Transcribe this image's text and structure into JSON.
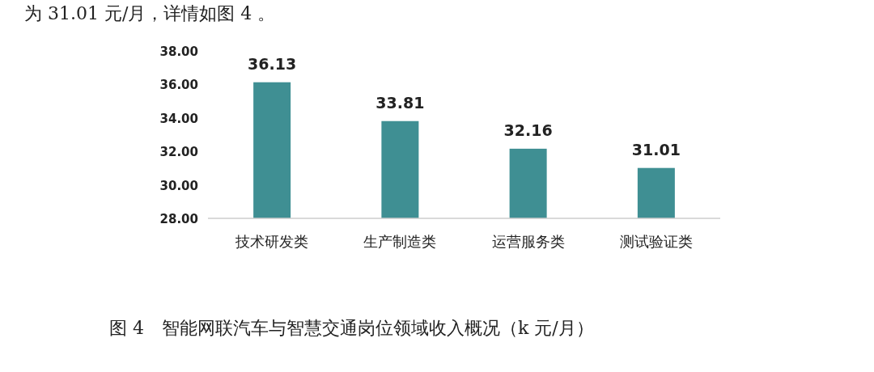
{
  "chart_data": {
    "type": "bar",
    "title": "图 4　智能网联汽车与智慧交通岗位领域收入概况（k 元/月）",
    "annotations": [
      "为 31.01 元/月，详情如图 4 。"
    ],
    "categories": [
      "技术研发类",
      "生产制造类",
      "运营服务类",
      "测试验证类"
    ],
    "values": [
      36.13,
      33.81,
      32.16,
      31.01
    ],
    "color": "#3f8f93",
    "ylim": [
      28,
      38
    ],
    "yticks": [
      {
        "value": 28,
        "label": "28.00"
      },
      {
        "value": 30,
        "label": "30.00"
      },
      {
        "value": 32,
        "label": "32.00"
      },
      {
        "value": 34,
        "label": "34.00"
      },
      {
        "value": 36,
        "label": "36.00"
      },
      {
        "value": 38,
        "label": "38.00"
      }
    ],
    "data_labels": true,
    "grid": false
  }
}
